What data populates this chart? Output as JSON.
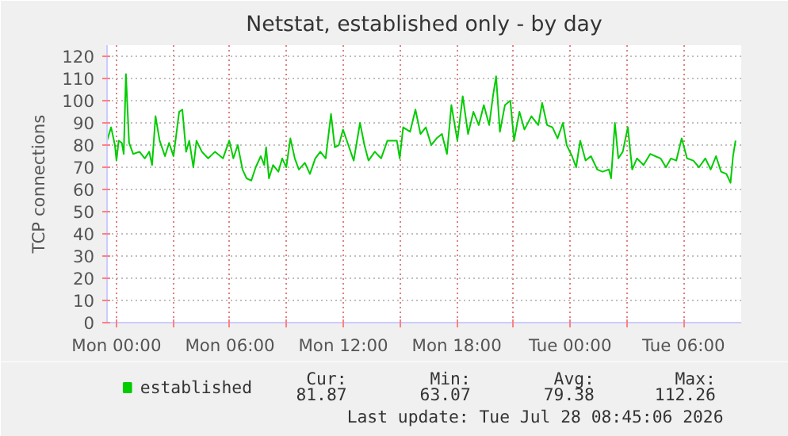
{
  "chart_data": {
    "type": "line",
    "title": "Netstat, established only - by day",
    "ylabel": "TCP connections",
    "xlim": [
      "2026-07-26T23:30",
      "2026-07-28T09:03"
    ],
    "ylim": [
      0,
      125
    ],
    "xticks": [
      {
        "value": "2026-07-27T00:00",
        "label": "Mon 00:00"
      },
      {
        "value": "2026-07-27T03:00",
        "label": null
      },
      {
        "value": "2026-07-27T06:00",
        "label": "Mon 06:00"
      },
      {
        "value": "2026-07-27T09:00",
        "label": null
      },
      {
        "value": "2026-07-27T12:00",
        "label": "Mon 12:00"
      },
      {
        "value": "2026-07-27T15:00",
        "label": null
      },
      {
        "value": "2026-07-27T18:00",
        "label": "Mon 18:00"
      },
      {
        "value": "2026-07-27T21:00",
        "label": null
      },
      {
        "value": "2026-07-28T00:00",
        "label": "Tue 00:00"
      },
      {
        "value": "2026-07-28T03:00",
        "label": null
      },
      {
        "value": "2026-07-28T06:00",
        "label": "Tue 06:00"
      }
    ],
    "yticks": [
      0,
      10,
      20,
      30,
      40,
      50,
      60,
      70,
      80,
      90,
      100,
      110,
      120
    ],
    "grid": true,
    "legend": "bottom",
    "marker": "none",
    "line_style": "solid",
    "series": [
      {
        "name": "established",
        "color": "#00cc00",
        "x": [
          "2026-07-26T23:30",
          "2026-07-26T23:43",
          "2026-07-26T23:55",
          "2026-07-27T00:00",
          "2026-07-27T00:07",
          "2026-07-27T00:17",
          "2026-07-27T00:23",
          "2026-07-27T00:30",
          "2026-07-27T00:40",
          "2026-07-27T00:53",
          "2026-07-27T01:13",
          "2026-07-27T01:30",
          "2026-07-27T01:44",
          "2026-07-27T01:53",
          "2026-07-27T02:04",
          "2026-07-27T02:17",
          "2026-07-27T02:34",
          "2026-07-27T02:47",
          "2026-07-27T03:01",
          "2026-07-27T03:11",
          "2026-07-27T03:19",
          "2026-07-27T03:29",
          "2026-07-27T03:41",
          "2026-07-27T03:51",
          "2026-07-27T04:04",
          "2026-07-27T04:14",
          "2026-07-27T04:31",
          "2026-07-27T04:51",
          "2026-07-27T05:13",
          "2026-07-27T05:38",
          "2026-07-27T05:58",
          "2026-07-27T06:11",
          "2026-07-27T06:25",
          "2026-07-27T06:40",
          "2026-07-27T06:53",
          "2026-07-27T07:08",
          "2026-07-27T07:22",
          "2026-07-27T07:38",
          "2026-07-27T07:49",
          "2026-07-27T07:55",
          "2026-07-27T08:04",
          "2026-07-27T08:17",
          "2026-07-27T08:34",
          "2026-07-27T08:46",
          "2026-07-27T08:59",
          "2026-07-27T09:12",
          "2026-07-27T09:26",
          "2026-07-27T09:39",
          "2026-07-27T09:58",
          "2026-07-27T10:14",
          "2026-07-27T10:31",
          "2026-07-27T10:47",
          "2026-07-27T11:04",
          "2026-07-27T11:21",
          "2026-07-27T11:33",
          "2026-07-27T11:46",
          "2026-07-27T11:59",
          "2026-07-27T12:16",
          "2026-07-27T12:33",
          "2026-07-27T12:53",
          "2026-07-27T13:07",
          "2026-07-27T13:20",
          "2026-07-27T13:40",
          "2026-07-27T14:00",
          "2026-07-27T14:20",
          "2026-07-27T14:42",
          "2026-07-27T14:50",
          "2026-07-27T14:59",
          "2026-07-27T15:10",
          "2026-07-27T15:32",
          "2026-07-27T15:49",
          "2026-07-27T16:05",
          "2026-07-27T16:22",
          "2026-07-27T16:39",
          "2026-07-27T16:56",
          "2026-07-27T17:13",
          "2026-07-27T17:29",
          "2026-07-27T17:43",
          "2026-07-27T18:02",
          "2026-07-27T18:19",
          "2026-07-27T18:36",
          "2026-07-27T18:53",
          "2026-07-27T19:10",
          "2026-07-27T19:26",
          "2026-07-27T19:43",
          "2026-07-27T19:55",
          "2026-07-27T20:05",
          "2026-07-27T20:17",
          "2026-07-27T20:33",
          "2026-07-27T20:50",
          "2026-07-27T21:02",
          "2026-07-27T21:19",
          "2026-07-27T21:35",
          "2026-07-27T21:57",
          "2026-07-27T22:19",
          "2026-07-27T22:31",
          "2026-07-27T22:47",
          "2026-07-27T23:04",
          "2026-07-27T23:20",
          "2026-07-27T23:37",
          "2026-07-27T23:49",
          "2026-07-28T00:06",
          "2026-07-28T00:19",
          "2026-07-28T00:32",
          "2026-07-28T00:49",
          "2026-07-28T01:06",
          "2026-07-28T01:26",
          "2026-07-28T01:43",
          "2026-07-28T02:03",
          "2026-07-28T02:10",
          "2026-07-28T02:22",
          "2026-07-28T02:33",
          "2026-07-28T02:47",
          "2026-07-28T03:03",
          "2026-07-28T03:17",
          "2026-07-28T03:32",
          "2026-07-28T03:53",
          "2026-07-28T04:14",
          "2026-07-28T04:30",
          "2026-07-28T04:47",
          "2026-07-28T05:04",
          "2026-07-28T05:20",
          "2026-07-28T05:37",
          "2026-07-28T05:54",
          "2026-07-28T06:11",
          "2026-07-28T06:31",
          "2026-07-28T06:49",
          "2026-07-28T07:09",
          "2026-07-28T07:26",
          "2026-07-28T07:43",
          "2026-07-28T07:59",
          "2026-07-28T08:16",
          "2026-07-28T08:29",
          "2026-07-28T08:37",
          "2026-07-28T08:45"
        ],
        "values": [
          82,
          88,
          80,
          73,
          82,
          81,
          76,
          112,
          81,
          76,
          77,
          74,
          77,
          71,
          93,
          82,
          75,
          81,
          75,
          86,
          95,
          96,
          77,
          82,
          70,
          82,
          77,
          74,
          77,
          74,
          82,
          74,
          80,
          69,
          65,
          64,
          70,
          75,
          71,
          79,
          65,
          71,
          68,
          74,
          70,
          83,
          74,
          69,
          72,
          67,
          74,
          77,
          74,
          94,
          79,
          80,
          87,
          80,
          73,
          90,
          80,
          73,
          77,
          74,
          82,
          82,
          82,
          74,
          88,
          86,
          96,
          85,
          88,
          80,
          83,
          85,
          76,
          98,
          82,
          102,
          85,
          95,
          89,
          98,
          89,
          102,
          111,
          86,
          98,
          100,
          82,
          95,
          87,
          93,
          89,
          99,
          89,
          88,
          83,
          90,
          80,
          75,
          70,
          82,
          73,
          75,
          69,
          68,
          69,
          65,
          90,
          74,
          77,
          88,
          69,
          74,
          71,
          76,
          75,
          74,
          70,
          74,
          73,
          83,
          74,
          73,
          70,
          74,
          69,
          75,
          68,
          67,
          63,
          75,
          82
        ]
      }
    ],
    "annotations": [
      "Cur:",
      "Min:",
      "Avg:",
      "Max:",
      "81.87",
      "63.07",
      "79.38",
      "112.26",
      "Last update: Tue Jul 28 08:45:06 2026"
    ]
  }
}
